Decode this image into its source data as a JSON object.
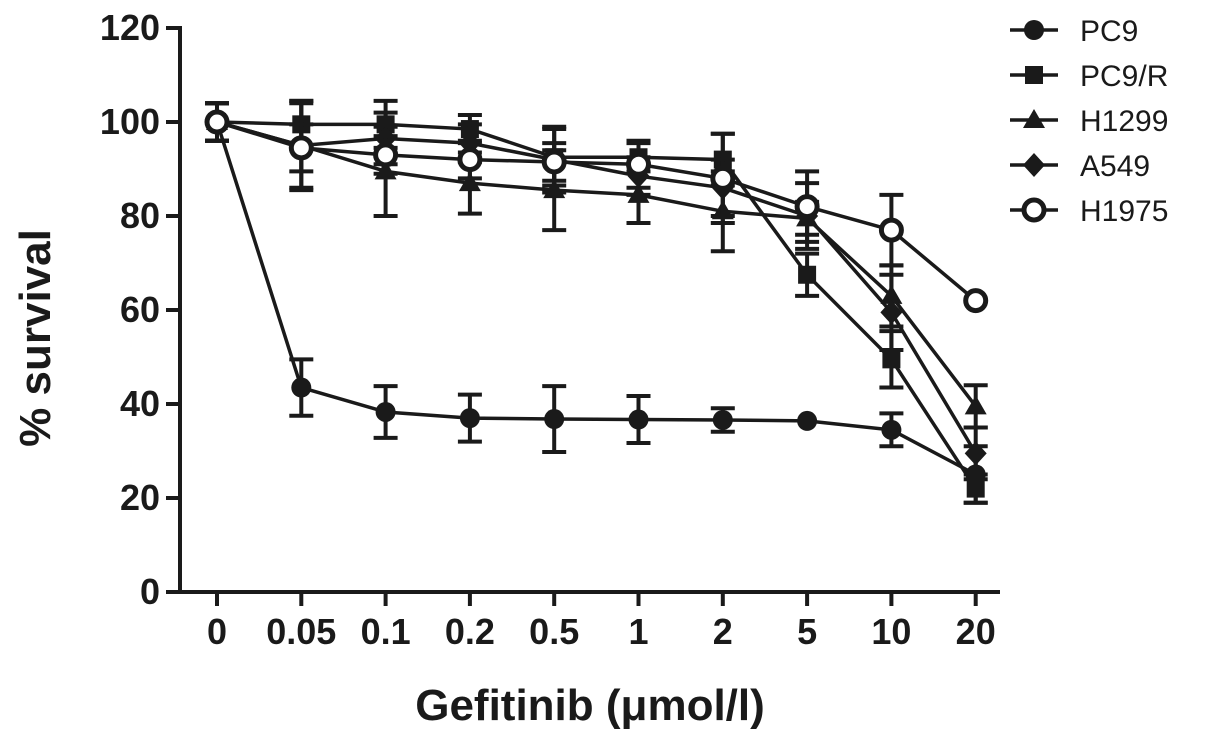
{
  "chart_data": {
    "type": "line",
    "title": "",
    "xlabel": "Gefitinib (μmol/l)",
    "ylabel": "% survival",
    "categories": [
      "0",
      "0.05",
      "0.1",
      "0.2",
      "0.5",
      "1",
      "2",
      "5",
      "10",
      "20"
    ],
    "ylim": [
      0,
      120
    ],
    "yticks": [
      0,
      20,
      40,
      60,
      80,
      100,
      120
    ],
    "grid": false,
    "legend": "top-right",
    "series": [
      {
        "name": "PC9",
        "marker": "circle",
        "values": [
          100,
          43.5,
          38.3,
          37,
          36.8,
          36.7,
          36.6,
          36.4,
          34.5,
          25
        ],
        "errors": [
          4,
          6,
          5.5,
          5,
          7,
          5,
          2.5,
          0,
          3.5,
          6
        ]
      },
      {
        "name": "PC9/R",
        "marker": "square",
        "values": [
          100,
          99.5,
          99.5,
          98.5,
          92.5,
          92.5,
          92,
          67.5,
          49.5,
          22
        ],
        "errors": [
          4,
          5,
          5,
          3,
          6,
          3,
          5.5,
          4.5,
          6,
          3
        ]
      },
      {
        "name": "H1299",
        "marker": "triangle",
        "values": [
          100,
          95,
          89.5,
          87,
          85.5,
          84.5,
          81,
          79.5,
          63,
          39.5
        ],
        "errors": [
          4,
          9.5,
          9.5,
          6.5,
          8.5,
          6,
          8.5,
          3.5,
          6.5,
          4.5
        ]
      },
      {
        "name": "A549",
        "marker": "diamond",
        "values": [
          100,
          95,
          96.5,
          95.5,
          92,
          88.5,
          86,
          80,
          59.5,
          29.5
        ],
        "errors": [
          4,
          9,
          5.5,
          4,
          7,
          4,
          6,
          7,
          8,
          5.5
        ]
      },
      {
        "name": "H1975",
        "marker": "open-circle",
        "values": [
          100,
          94.5,
          93,
          92,
          91.5,
          91,
          88,
          82,
          77,
          62
        ],
        "errors": [
          4,
          5,
          4,
          4,
          4,
          5,
          9.5,
          7.5,
          7.5,
          0
        ]
      }
    ]
  }
}
